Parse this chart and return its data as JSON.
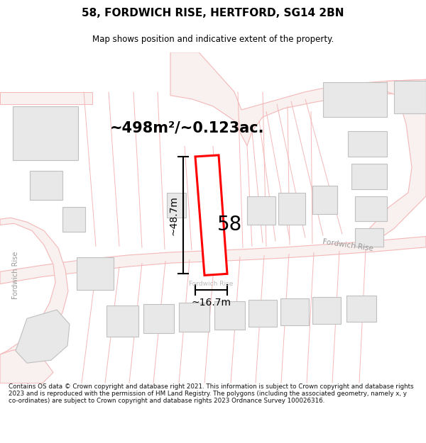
{
  "title": "58, FORDWICH RISE, HERTFORD, SG14 2BN",
  "subtitle": "Map shows position and indicative extent of the property.",
  "area_text": "~498m²/~0.123ac.",
  "dim_length": "~48.7m",
  "dim_width": "~16.7m",
  "label_number": "58",
  "road_label_right": "Fordwich Rise",
  "road_label_left": "Fordwich Rise",
  "road_label_bottom": "Fordwich Rise",
  "copyright_text": "Contains OS data © Crown copyright and database right 2021. This information is subject to Crown copyright and database rights 2023 and is reproduced with the permission of HM Land Registry. The polygons (including the associated geometry, namely x, y co-ordinates) are subject to Crown copyright and database rights 2023 Ordnance Survey 100026316.",
  "bg_color": "#ffffff",
  "map_bg": "#ffffff",
  "prop_fill": "#ffffff",
  "outline_color": "#ff0000",
  "building_fill": "#e8e8e8",
  "building_stroke": "#c0c0c0",
  "road_line_color": "#f4b8b8",
  "plot_line_color": "#f4b8b8",
  "dim_line_color": "#000000",
  "text_color": "#000000",
  "road_text_color": "#aaaaaa"
}
